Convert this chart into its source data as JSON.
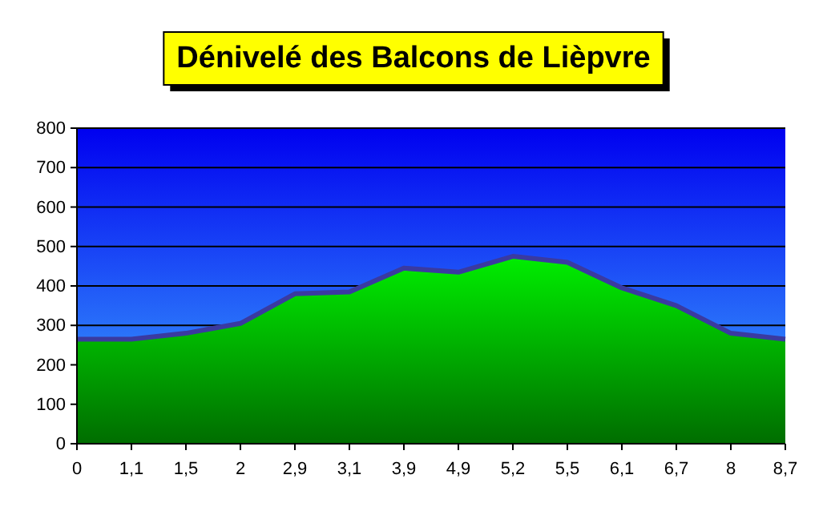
{
  "chart_data": {
    "type": "area",
    "title": "Dénivelé des Balcons de Lièpvre",
    "categories": [
      "0",
      "1,1",
      "1,5",
      "2",
      "2,9",
      "3,1",
      "3,9",
      "4,9",
      "5,2",
      "5,5",
      "6,1",
      "6,7",
      "8",
      "8,7"
    ],
    "series": [
      {
        "color": "#00ee00",
        "values": [
          265,
          265,
          280,
          305,
          380,
          385,
          445,
          435,
          475,
          460,
          395,
          350,
          280,
          265
        ]
      }
    ],
    "ylim": [
      0,
      800
    ],
    "yticks": [
      0,
      100,
      200,
      300,
      400,
      500,
      600,
      700,
      800
    ],
    "grid": "y"
  }
}
